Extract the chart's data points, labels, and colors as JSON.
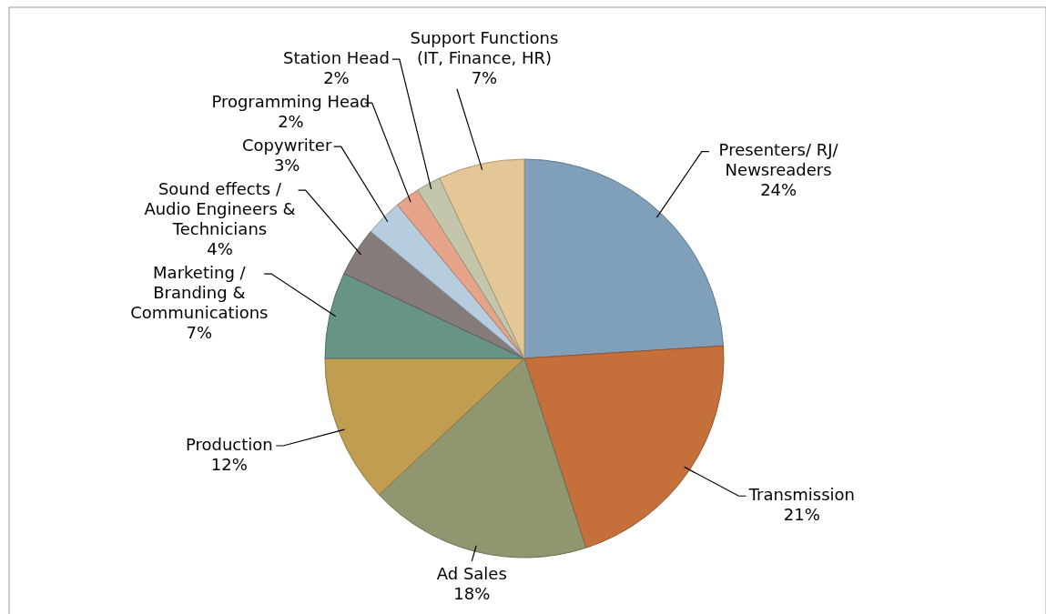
{
  "chart_data": {
    "type": "pie",
    "categories": [
      "Presenters/ RJ/ Newsreaders",
      "Transmission",
      "Ad Sales",
      "Production",
      "Marketing / Branding & Communications",
      "Sound effects / Audio Engineers & Technicians",
      "Copywriter",
      "Programming Head",
      "Station Head",
      "Support Functions (IT, Finance, HR)"
    ],
    "values": [
      24,
      21,
      18,
      12,
      7,
      4,
      3,
      2,
      2,
      7
    ],
    "colors": [
      "#7f9fba",
      "#c5703a",
      "#8f9670",
      "#c19d52",
      "#689488",
      "#857b78",
      "#b6cde0",
      "#e5a48a",
      "#c4c6ab",
      "#e3c796"
    ],
    "value_labels": [
      "24%",
      "21%",
      "18%",
      "12%",
      "7%",
      "4%",
      "3%",
      "2%",
      "2%",
      "7%"
    ]
  }
}
